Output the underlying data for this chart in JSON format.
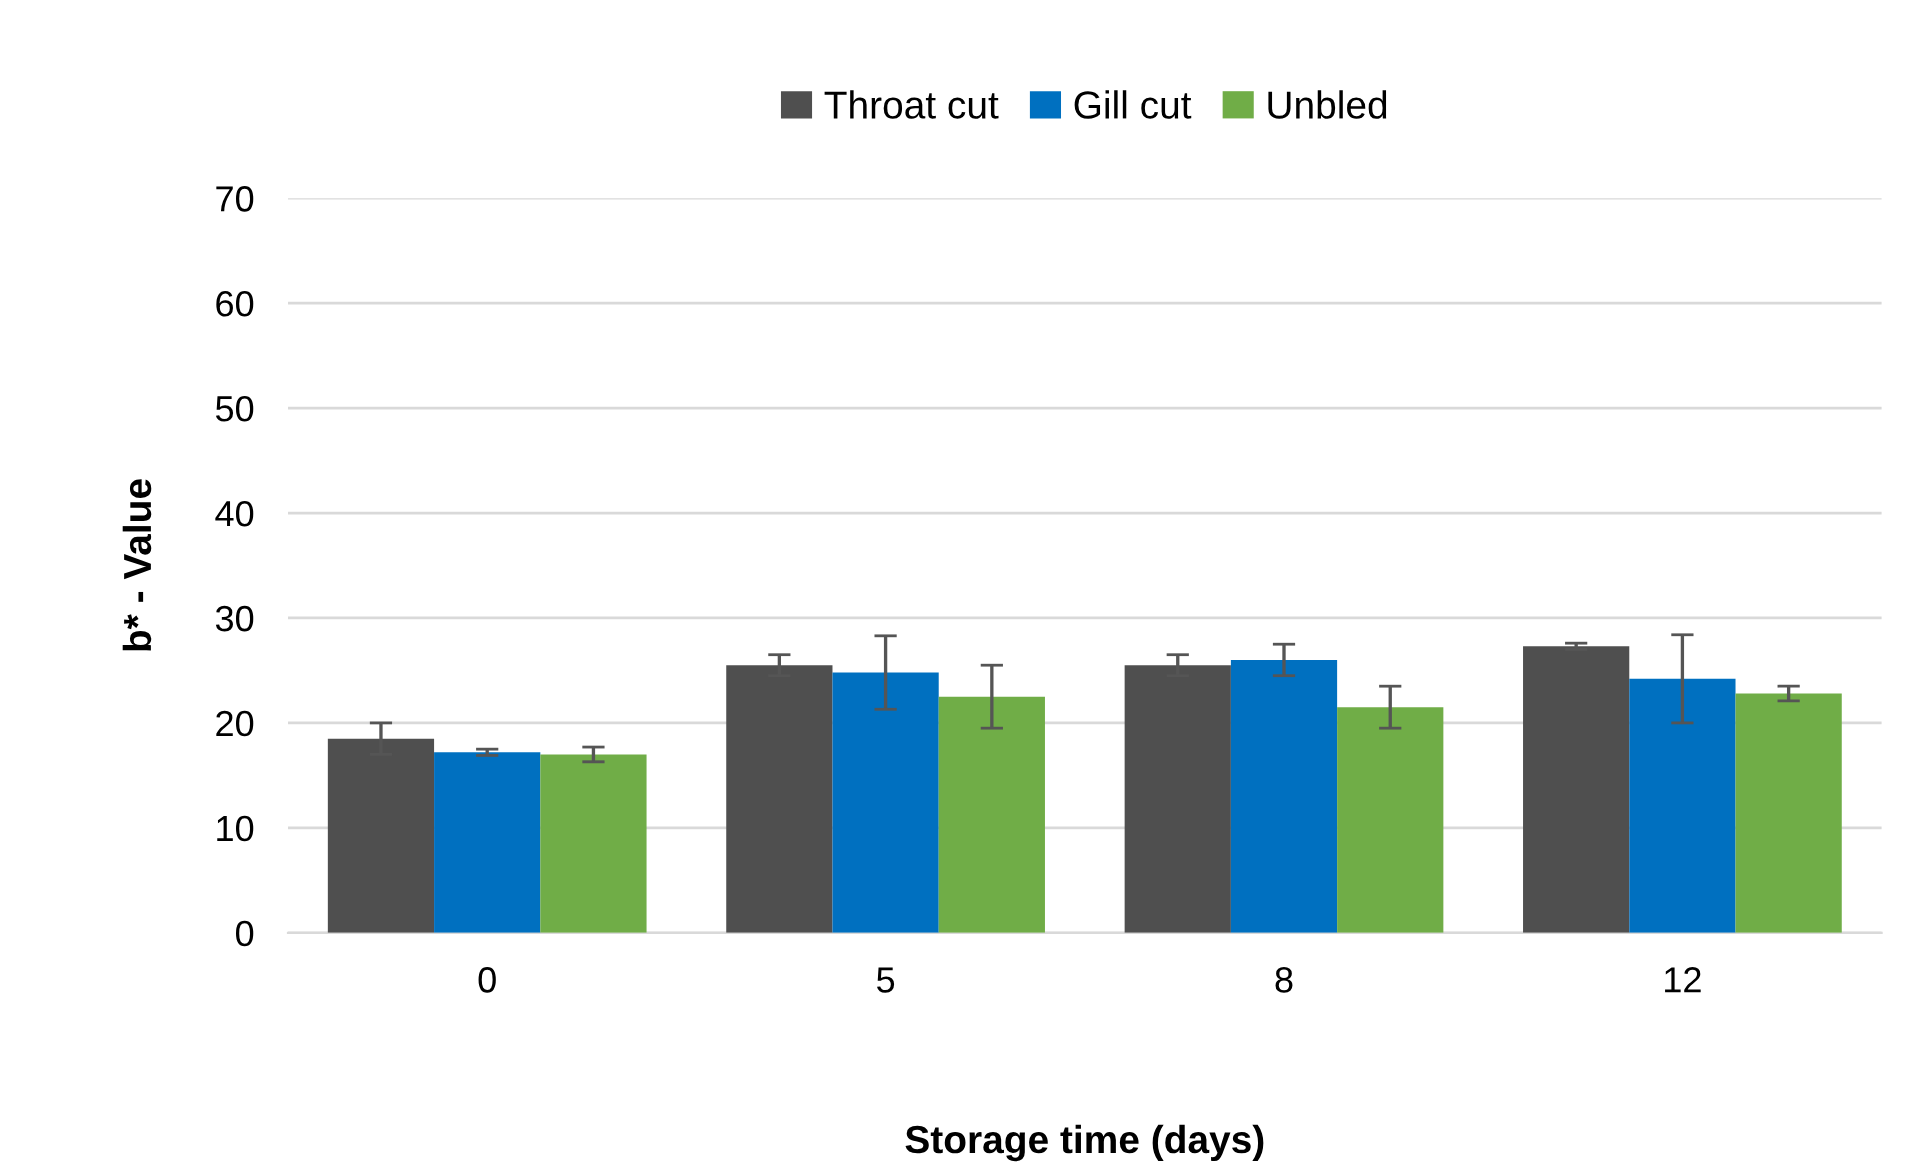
{
  "chart_data": {
    "type": "bar",
    "xlabel": "Storage time (days)",
    "ylabel": "b* - Value",
    "categories": [
      "0",
      "5",
      "8",
      "12"
    ],
    "series": [
      {
        "name": "Throat cut",
        "color": "#4f4f4f",
        "values": [
          18.5,
          25.5,
          25.5,
          27.3
        ],
        "errors": [
          1.5,
          1,
          1,
          0.3
        ]
      },
      {
        "name": "Gill cut",
        "color": "#0070c0",
        "values": [
          17.2,
          24.8,
          26,
          24.2
        ],
        "errors": [
          0.3,
          3.5,
          1.5,
          4.2
        ]
      },
      {
        "name": "Unbled",
        "color": "#70ad47",
        "values": [
          17,
          22.5,
          21.5,
          22.8
        ],
        "errors": [
          0.7,
          3,
          2,
          0.7
        ]
      }
    ],
    "ylim": [
      0,
      70
    ],
    "yticks": [
      0,
      10,
      20,
      30,
      40,
      50,
      60,
      70
    ],
    "grid": "y",
    "legend": "top"
  }
}
